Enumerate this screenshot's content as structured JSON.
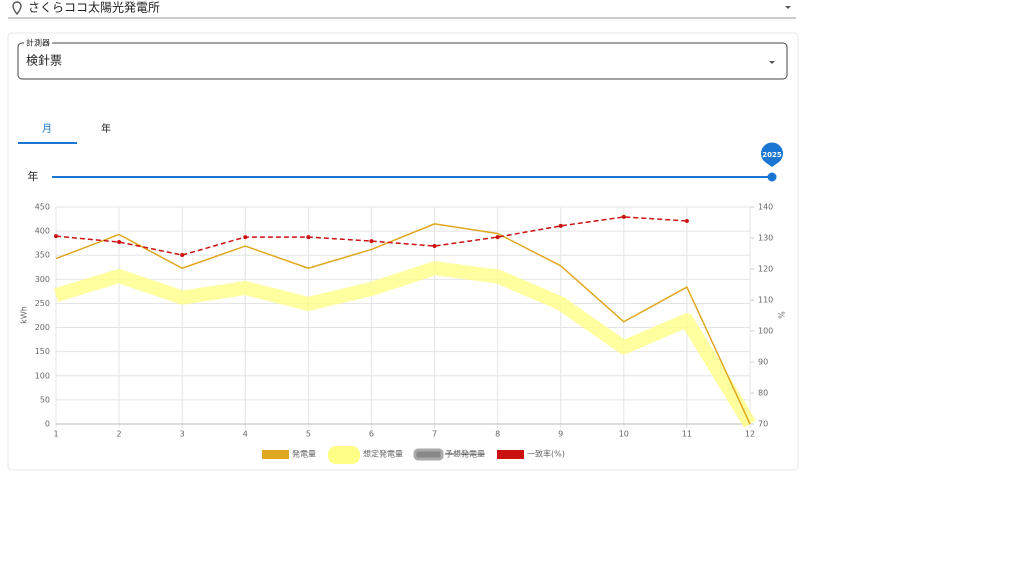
{
  "header": {
    "site": "さくらココ太陽光発電所"
  },
  "meter": {
    "label": "計測器",
    "value": "検針票"
  },
  "tabs": [
    "月",
    "年"
  ],
  "slider": {
    "label": "年",
    "value": 2025
  },
  "chart_data": {
    "type": "line",
    "x": [
      1,
      2,
      3,
      4,
      5,
      6,
      7,
      8,
      9,
      10,
      11,
      12
    ],
    "xlim": [
      1,
      12
    ],
    "xticks": [
      1,
      2,
      3,
      4,
      5,
      6,
      7,
      8,
      9,
      10,
      11,
      12
    ],
    "ylim": [
      0,
      450
    ],
    "yticks": [
      0,
      50,
      100,
      150,
      200,
      250,
      300,
      350,
      400,
      450
    ],
    "y2lim": [
      70,
      140
    ],
    "y2ticks": [
      70,
      80,
      90,
      100,
      110,
      120,
      130,
      140
    ],
    "ylabel": "kWh",
    "y2label": "%",
    "grid": true,
    "series": [
      {
        "name": "発電量",
        "color": "#e0a820",
        "width": 1.5,
        "values": [
          343,
          393,
          323,
          369,
          323,
          362,
          415,
          395,
          328,
          212,
          284,
          0
        ]
      },
      {
        "name": "想定発電量",
        "color": "#ffff88",
        "width": 14,
        "values": [
          267,
          307,
          262,
          282,
          249,
          280,
          323,
          306,
          250,
          159,
          215,
          0
        ]
      },
      {
        "name": "予想発電量",
        "color": "#888888",
        "width": 2,
        "hidden": true,
        "values": [
          null,
          null,
          null,
          null,
          null,
          null,
          null,
          null,
          null,
          null,
          null,
          null
        ]
      },
      {
        "name": "一致率(%)",
        "color": "#cc1111",
        "width": 1.5,
        "dashed": true,
        "markers": true,
        "axis": "y2",
        "values": [
          130.6,
          128.7,
          124.5,
          130.3,
          130.3,
          129,
          127.4,
          130.3,
          133.9,
          136.8,
          135.5,
          null
        ]
      }
    ]
  }
}
